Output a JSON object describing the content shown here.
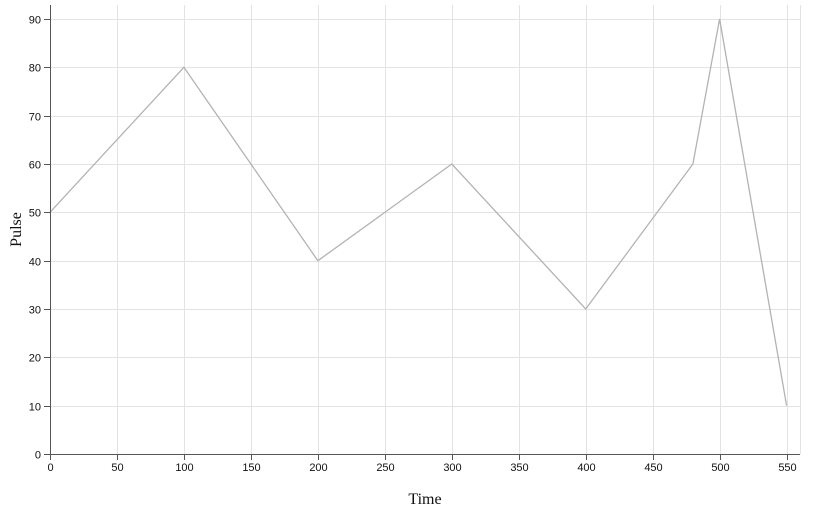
{
  "chart_data": {
    "type": "line",
    "title": "",
    "xlabel": "Time",
    "ylabel": "Pulse",
    "xlim": [
      0,
      560
    ],
    "ylim": [
      0,
      90
    ],
    "x_ticks": [
      0,
      50,
      100,
      150,
      200,
      250,
      300,
      350,
      400,
      450,
      500,
      550
    ],
    "y_ticks": [
      0,
      10,
      20,
      30,
      40,
      50,
      60,
      70,
      80,
      90
    ],
    "grid": true,
    "line_color": "#b3b3b3",
    "series": [
      {
        "x": [
          0,
          100,
          150,
          200,
          300,
          400,
          480,
          500,
          550
        ],
        "values": [
          50,
          80,
          60,
          40,
          60,
          30,
          60,
          90,
          10
        ]
      }
    ]
  }
}
